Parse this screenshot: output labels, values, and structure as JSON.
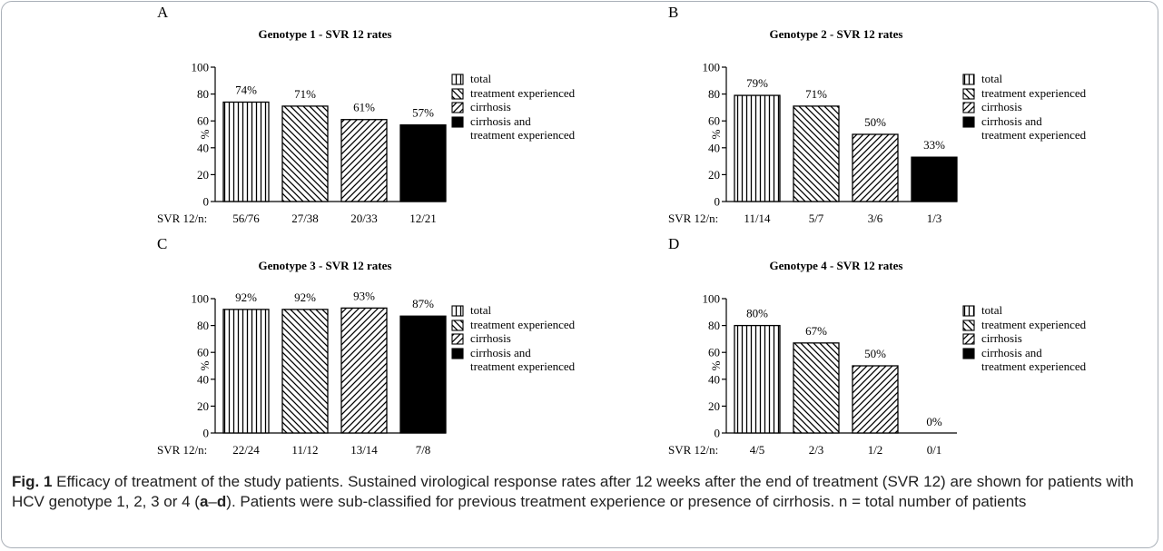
{
  "chart_data": [
    {
      "type": "bar",
      "panel_label": "A",
      "title": "Genotype 1 - SVR 12 rates",
      "ylabel": "%",
      "ylim": [
        0,
        100
      ],
      "yticks": [
        "0",
        "20",
        "40",
        "60",
        "80",
        "100"
      ],
      "row_label": "SVR 12/n:",
      "categories": [
        "total",
        "treatment experienced",
        "cirrhosis",
        "cirrhosis and treatment experienced"
      ],
      "values": [
        74,
        71,
        61,
        57
      ],
      "value_labels": [
        "74%",
        "71%",
        "61%",
        "57%"
      ],
      "counts": [
        "56/76",
        "27/38",
        "20/33",
        "12/21"
      ],
      "legend": [
        "total",
        "treatment experienced",
        "cirrhosis",
        "cirrhosis and",
        "treatment experienced"
      ]
    },
    {
      "type": "bar",
      "panel_label": "B",
      "title": "Genotype 2 - SVR 12 rates",
      "ylabel": "%",
      "ylim": [
        0,
        100
      ],
      "yticks": [
        "0",
        "20",
        "40",
        "60",
        "80",
        "100"
      ],
      "row_label": "SVR 12/n:",
      "categories": [
        "total",
        "treatment experienced",
        "cirrhosis",
        "cirrhosis and treatment experienced"
      ],
      "values": [
        79,
        71,
        50,
        33
      ],
      "value_labels": [
        "79%",
        "71%",
        "50%",
        "33%"
      ],
      "counts": [
        "11/14",
        "5/7",
        "3/6",
        "1/3"
      ],
      "legend": [
        "total",
        "treatment experienced",
        "cirrhosis",
        "cirrhosis and",
        "treatment experienced"
      ]
    },
    {
      "type": "bar",
      "panel_label": "C",
      "title": "Genotype 3 - SVR 12 rates",
      "ylabel": "%",
      "ylim": [
        0,
        100
      ],
      "yticks": [
        "0",
        "20",
        "40",
        "60",
        "80",
        "100"
      ],
      "row_label": "SVR 12/n:",
      "categories": [
        "total",
        "treatment experienced",
        "cirrhosis",
        "cirrhosis and treatment experienced"
      ],
      "values": [
        92,
        92,
        93,
        87
      ],
      "value_labels": [
        "92%",
        "92%",
        "93%",
        "87%"
      ],
      "counts": [
        "22/24",
        "11/12",
        "13/14",
        "7/8"
      ],
      "legend": [
        "total",
        "treatment experienced",
        "cirrhosis",
        "cirrhosis and",
        "treatment experienced"
      ]
    },
    {
      "type": "bar",
      "panel_label": "D",
      "title": "Genotype 4 - SVR 12 rates",
      "ylabel": "%",
      "ylim": [
        0,
        100
      ],
      "yticks": [
        "0",
        "20",
        "40",
        "60",
        "80",
        "100"
      ],
      "row_label": "SVR 12/n:",
      "categories": [
        "total",
        "treatment experienced",
        "cirrhosis",
        "cirrhosis and treatment experienced"
      ],
      "values": [
        80,
        67,
        50,
        0
      ],
      "value_labels": [
        "80%",
        "67%",
        "50%",
        "0%"
      ],
      "counts": [
        "4/5",
        "2/3",
        "1/2",
        "0/1"
      ],
      "legend": [
        "total",
        "treatment experienced",
        "cirrhosis",
        "cirrhosis and",
        "treatment experienced"
      ]
    }
  ],
  "caption": {
    "label": "Fig. 1",
    "text_before": " Efficacy of treatment of the study patients. Sustained virological response rates after 12 weeks after the end of treatment (SVR 12) are shown for patients with HCV genotype 1, 2, 3 or 4 (",
    "range_start": "a",
    "range_dash": "–",
    "range_end": "d",
    "text_after": "). Patients were sub-classified for previous treatment experience or presence of cirrhosis. n = total number of patients"
  }
}
